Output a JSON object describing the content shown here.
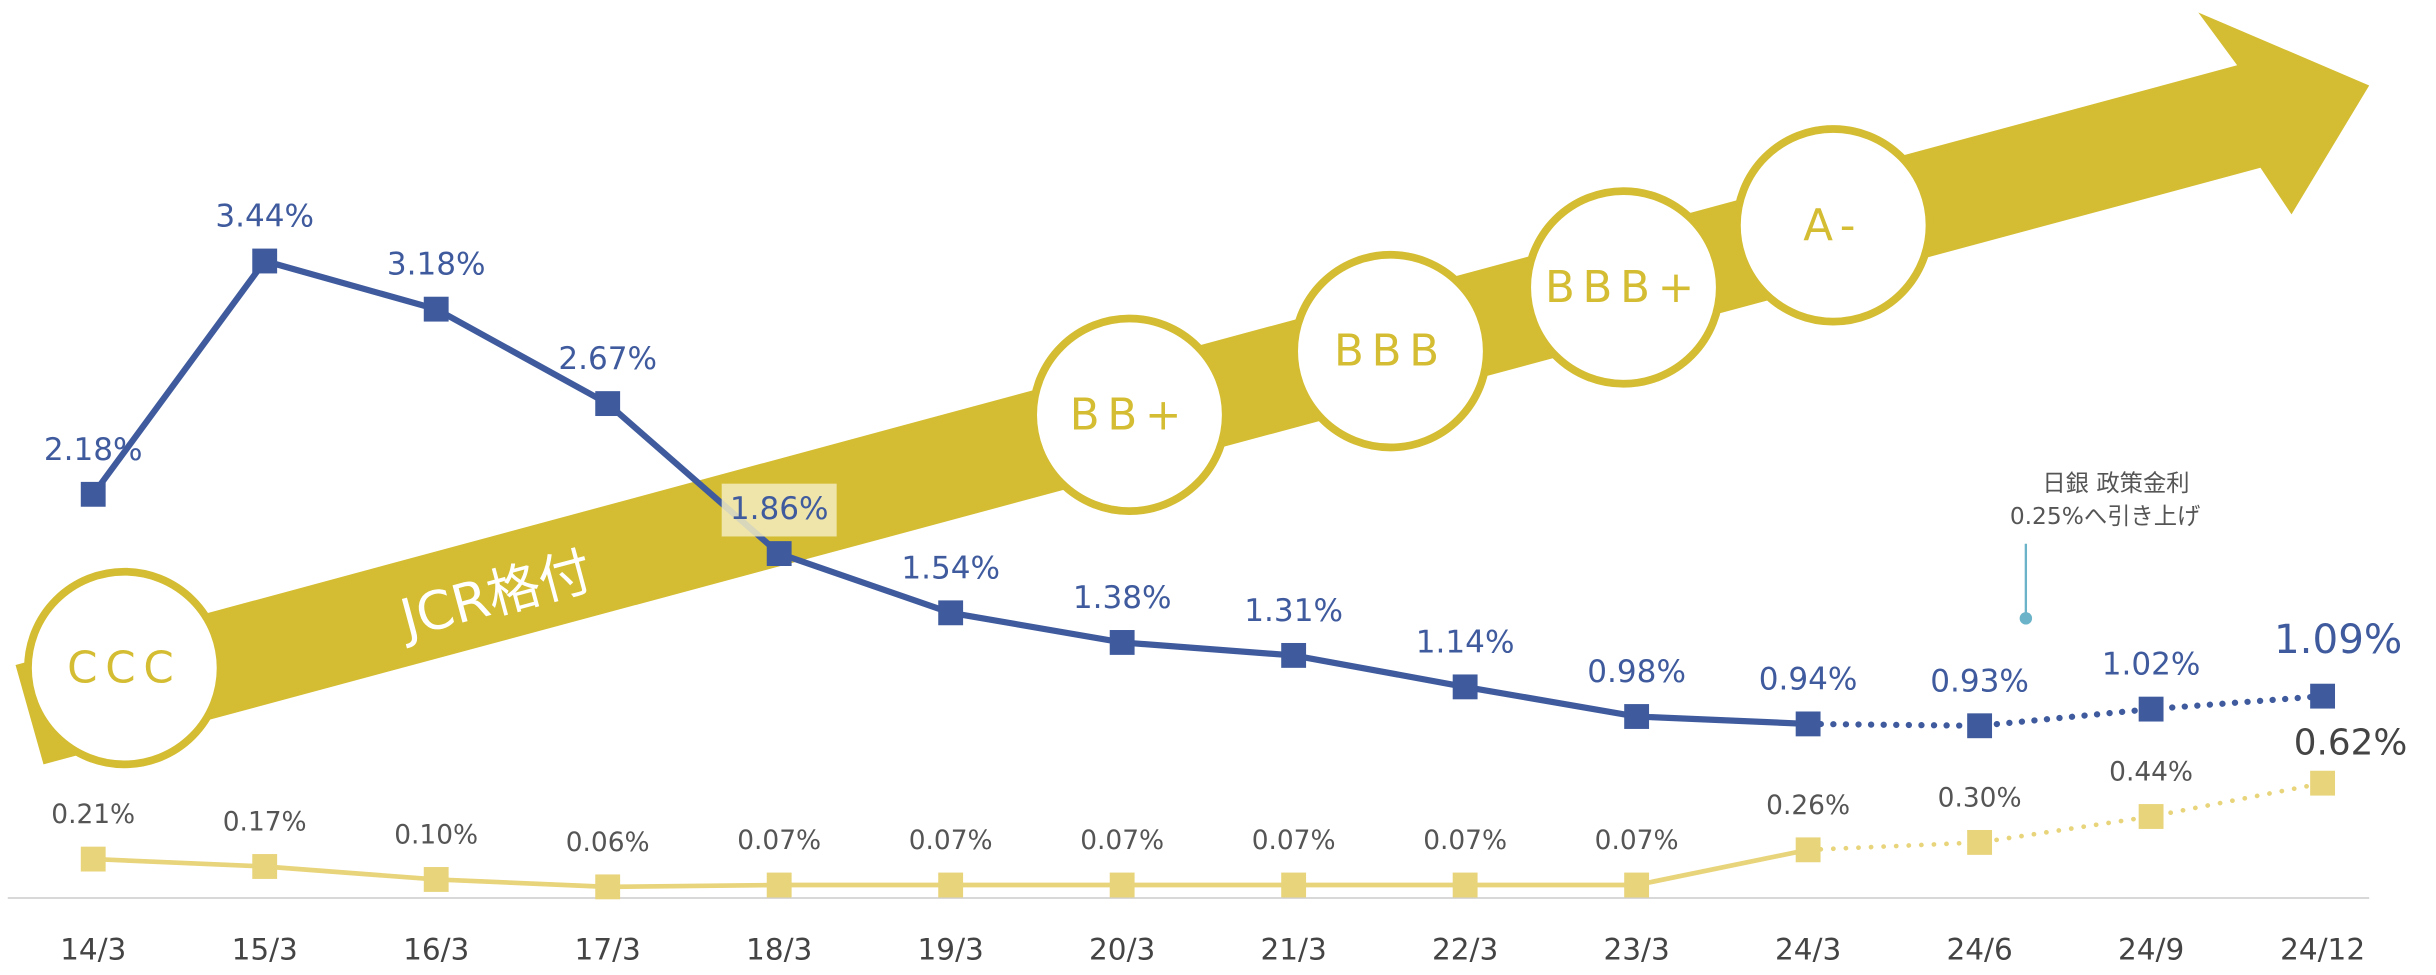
{
  "chart_data": {
    "type": "line",
    "categories": [
      "14/3",
      "15/3",
      "16/3",
      "17/3",
      "18/3",
      "19/3",
      "20/3",
      "21/3",
      "22/3",
      "23/3",
      "24/3",
      "24/6",
      "24/9",
      "24/12"
    ],
    "series": [
      {
        "color": "#3f5b9e",
        "values": [
          2.18,
          3.44,
          3.18,
          2.67,
          1.86,
          1.54,
          1.38,
          1.31,
          1.14,
          0.98,
          0.94,
          0.93,
          1.02,
          1.09
        ],
        "value_labels": [
          "2.18%",
          "3.44%",
          "3.18%",
          "2.67%",
          "1.86%",
          "1.54%",
          "1.38%",
          "1.31%",
          "1.14%",
          "0.98%",
          "0.94%",
          "0.93%",
          "1.02%",
          "1.09%"
        ]
      },
      {
        "color": "#e8d47a",
        "values": [
          0.21,
          0.17,
          0.1,
          0.06,
          0.07,
          0.07,
          0.07,
          0.07,
          0.07,
          0.07,
          0.26,
          0.3,
          0.44,
          0.62
        ],
        "value_labels": [
          "0.21%",
          "0.17%",
          "0.10%",
          "0.06%",
          "0.07%",
          "0.07%",
          "0.07%",
          "0.07%",
          "0.07%",
          "0.07%",
          "0.26%",
          "0.30%",
          "0.44%",
          "0.62%"
        ]
      }
    ],
    "arrow_label": "JCR格付",
    "ratings": [
      "CCC",
      "BB+",
      "BBB",
      "BBB+",
      "A-"
    ],
    "annotation": [
      "日銀 政策金利",
      "0.25%へ引き上げ"
    ]
  }
}
